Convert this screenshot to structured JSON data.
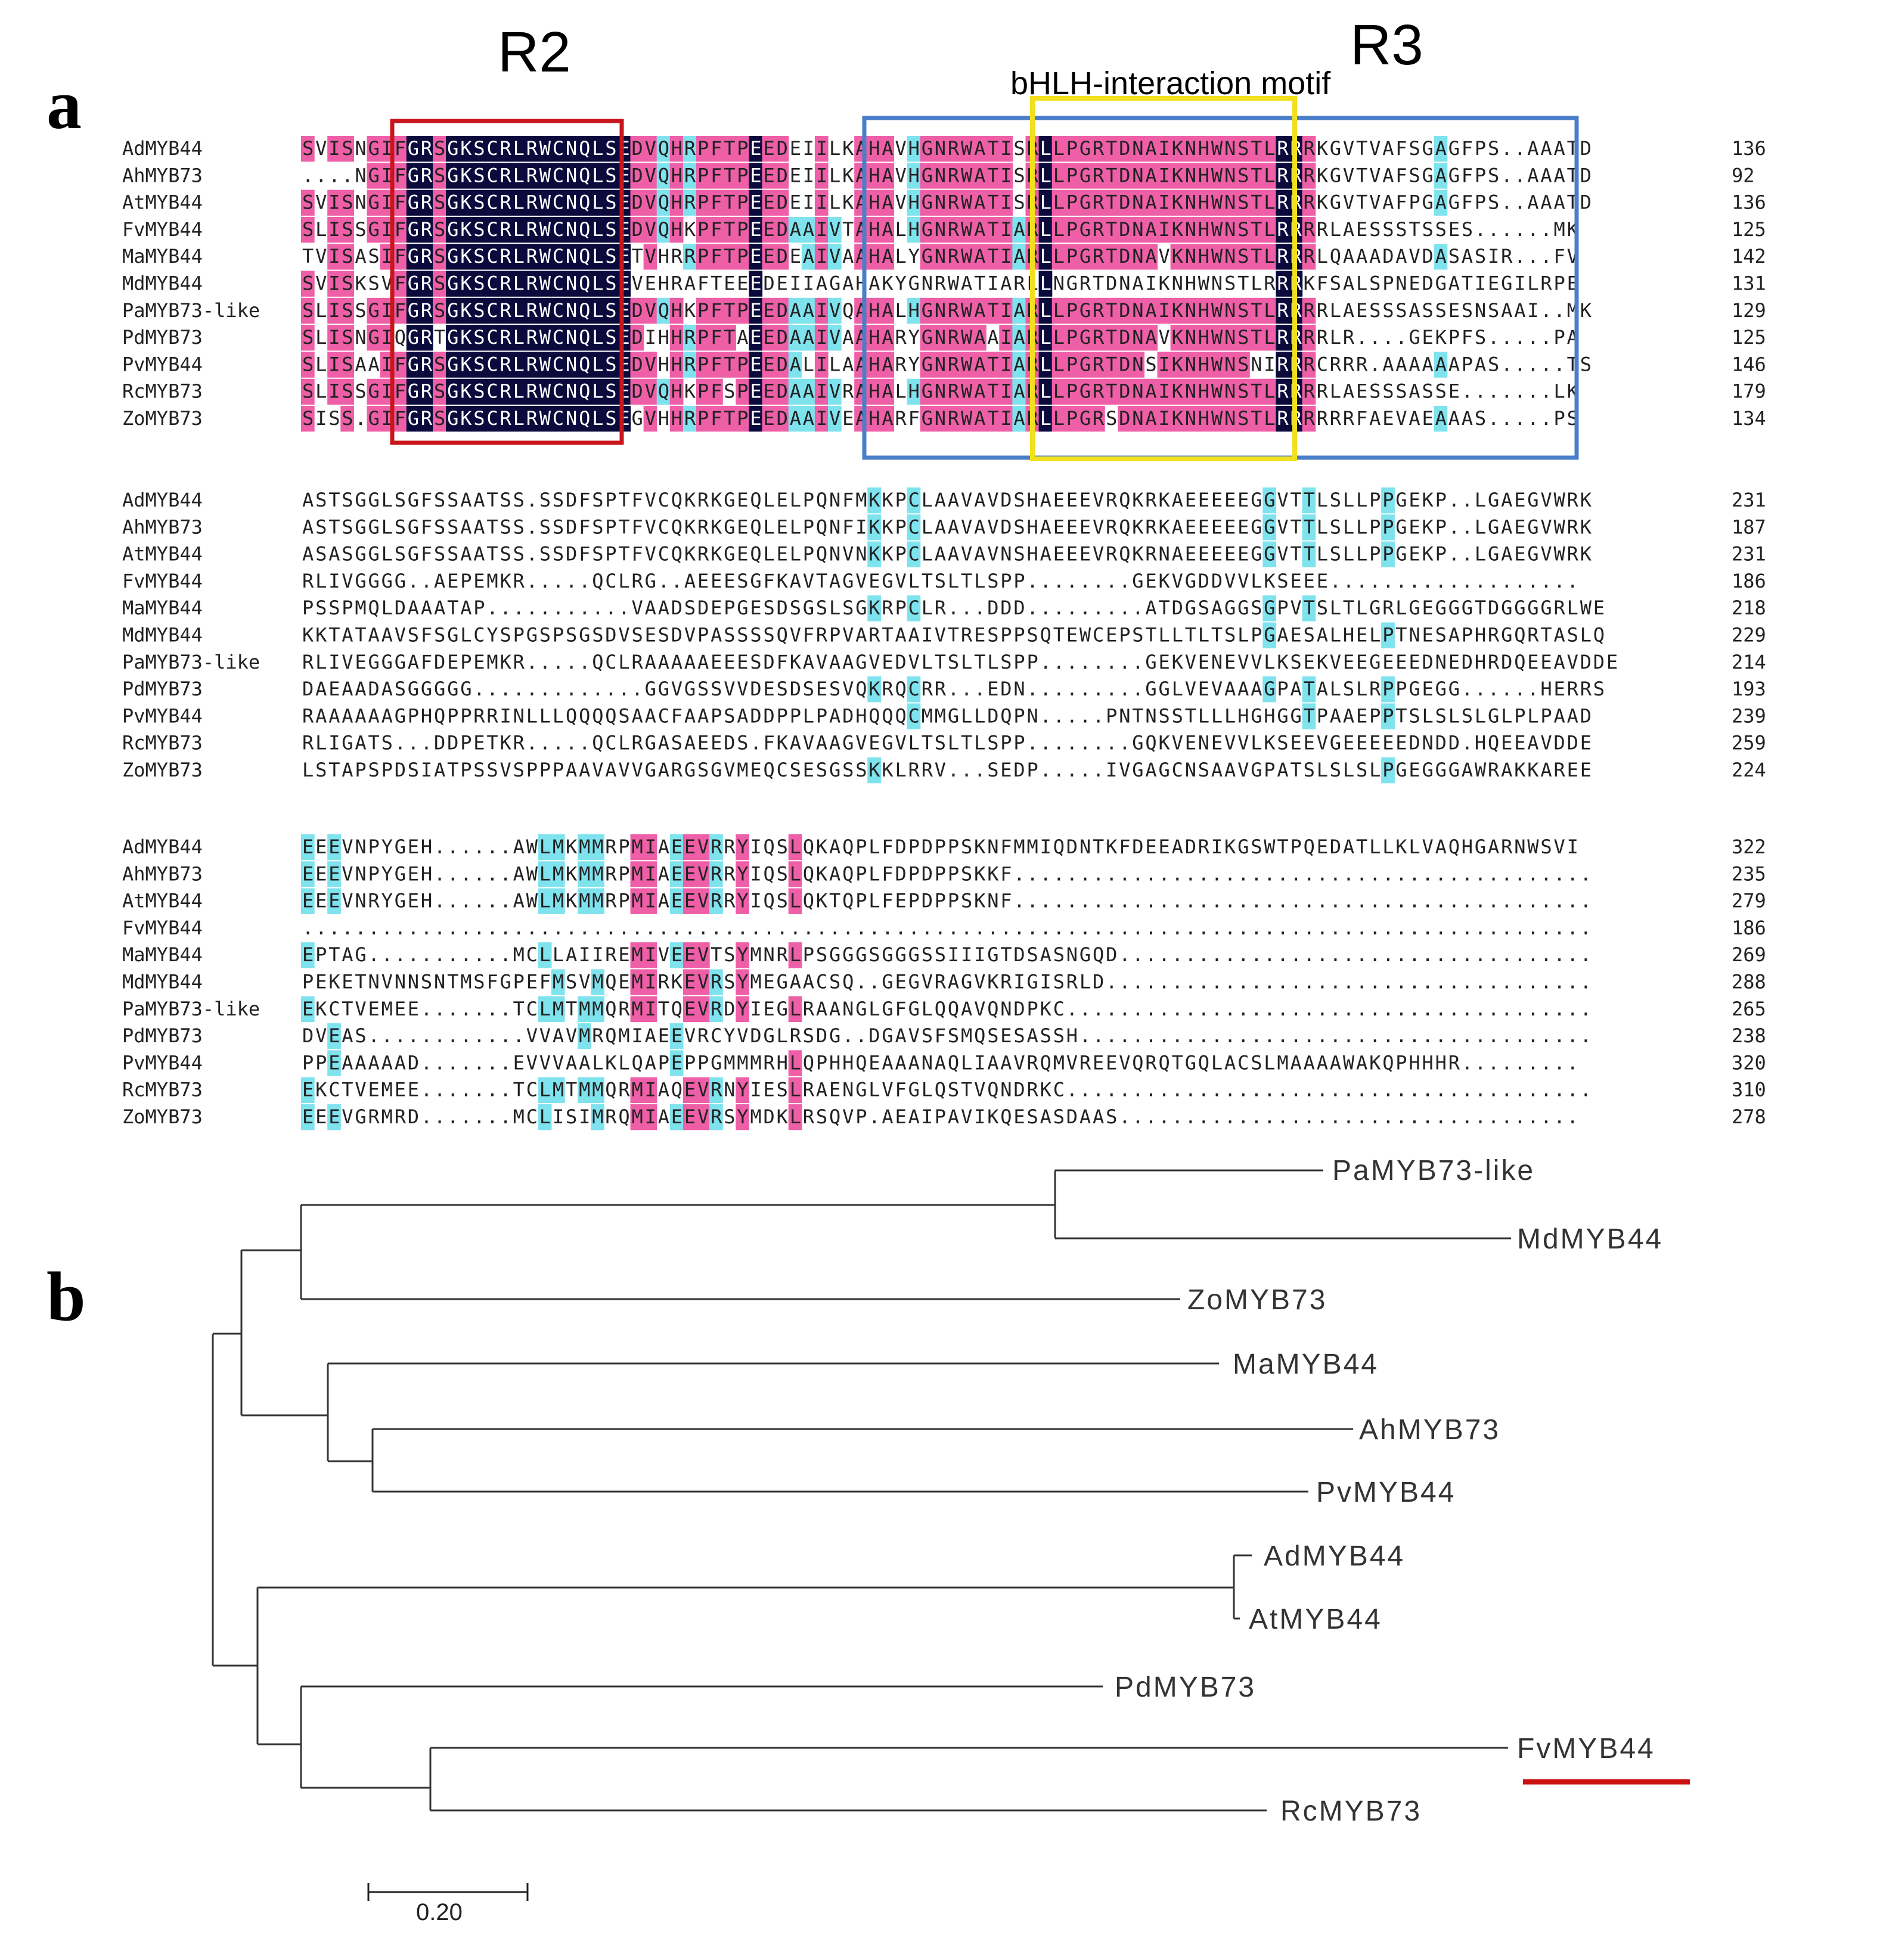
{
  "panel_a": {
    "label": "a",
    "regions": {
      "r2": "R2",
      "r3": "R3",
      "motif": "bHLH-interaction motif"
    },
    "colors": {
      "identical": "#0a0a3c",
      "high": "#ee5fa7",
      "low": "#7fe3ee",
      "r2_box": "#c8161d",
      "r3_box": "#4a7ec8",
      "motif_box": "#f2e01e"
    },
    "blocks": [
      {
        "rows": [
          {
            "name": "AdMYB44",
            "seq": "SVISNGIFGRSGKSCRLRWCNQLSEDVQHRPFTPEEDEIILKAHAVHGNRWATISRLLPGRTDNAIKNHWNSTLRRRKGVTVAFSGAGFPS..AAATD",
            "num": "136"
          },
          {
            "name": "AhMYB73",
            "seq": "....NGIFGRSGKSCRLRWCNQLSEDVQHRPFTPEEDEIILKAHAVHGNRWATISRLLPGRTDNAIKNHWNSTLRRRKGVTVAFSGAGFPS..AAATD",
            "num": "92"
          },
          {
            "name": "AtMYB44",
            "seq": "SVISNGIFGRSGKSCRLRWCNQLSEDVQHRPFTPEEDEIILKAHAVHGNRWATISRLLPGRTDNAIKNHWNSTLRRRKGVTVAFPGAGFPS..AAATD",
            "num": "136"
          },
          {
            "name": "FvMYB44",
            "seq": "SLISSGIFGRSGKSCRLRWCNQLSEDVQHKPFTPEEDAAIVTAHALHGNRWATIARLLPGRTDNAIKNHWNSTLRRRRLAESSSTSSES......MK",
            "num": "125"
          },
          {
            "name": "MaMYB44",
            "seq": "TVISASIFGRSGKSCRLRWCNQLSETVHRRPFTPEEDEAIVAAHALYGNRWATIARLLPGRTDNAVKNHWNSTLRRRLQAAADAVDASASIR...FV",
            "num": "142"
          },
          {
            "name": "MdMYB44",
            "seq": "SVISKSVFGRSGKSCRLRWCNQLSEVEHRAFTEEEDEIIAGAHAKYGNRWATIARLLNGRTDNAIKNHWNSTLRRRKFSALSPNEDGATIEGILRPE",
            "num": "131"
          },
          {
            "name": "PaMYB73-like",
            "seq": "SLISSGIFGRSGKSCRLRWCNQLSEDVQHKPFTPEEDAAIVQAHALHGNRWATIARLLPGRTDNAIKNHWNSTLRRRRLAESSSASSESNSAAI..MK",
            "num": "129"
          },
          {
            "name": "PdMYB73",
            "seq": "SLISNGIQGRTGKSCRLRWCNQLSEDIHHRPFTAEEDAAIVAAHARYGNRWAAIARLLPGRTDNAVKNHWNSTLRRRRLR....GEKPFS.....PA",
            "num": "125"
          },
          {
            "name": "PvMYB44",
            "seq": "SLISAAIFGRSGKSCRLRWCNQLSEDVHHRPFTPEEDALILAAHARYGNRWATIARLLPGRTDNSIKNHWNSNIRRRCRRR.AAAAAAPAS.....TS",
            "num": "146"
          },
          {
            "name": "RcMYB73",
            "seq": "SLISSGIFGRSGKSCRLRWCNQLSEDVQHKPFSPEEDAAIVRAHALHGNRWATIARLLPGRTDNAIKNHWNSTLRRRRLAESSSASSE.......LK",
            "num": "179"
          },
          {
            "name": "ZoMYB73",
            "seq": "SISS.GIFGRSGKSCRLRWCNQLSEGVHHRPFTPEEDAAIVEAHARFGNRWATIARLLPGRSDNAIKNHWNSTLRRRRRRFAEVAEAAAS.....PS",
            "num": "134"
          }
        ]
      },
      {
        "rows": [
          {
            "name": "AdMYB44",
            "seq": "ASTSGGLSGFSSAATSS.SSDFSPTFVCQKRKGEQLELPQNFMKKPCLAAVAVDSHAEEEVRQKRKAEEEEEGGVTTLSLLPPGEKP..LGAEGVWRK",
            "num": "231"
          },
          {
            "name": "AhMYB73",
            "seq": "ASTSGGLSGFSSAATSS.SSDFSPTFVCQKRKGEQLELPQNFIKKPCLAAVAVDSHAEEEVRQKRKAEEEEEGGVTTLSLLPPGEKP..LGAEGVWRK",
            "num": "187"
          },
          {
            "name": "AtMYB44",
            "seq": "ASASGGLSGFSSAATSS.SSDFSPTFVCQKRKGEQLELPQNVNKKPCLAAVAVNSHAEEEVRQKRNAEEEEEGGVTTLSLLPPGEKP..LGAEGVWRK",
            "num": "231"
          },
          {
            "name": "FvMYB44",
            "seq": "RLIVGGGG..AEPEMKR.....QCLRG..AEEESGFKAVTAGVEGVLTSLTLSPP........GEKVGDDVVLKSEEE...................",
            "num": "186"
          },
          {
            "name": "MaMYB44",
            "seq": "PSSPMQLDAAATAP...........VAADSDEPGESDSGSLSGKRPCLR...DDD.........ATDGSAGGSGPVTSLTLGRLGEGGGTDGGGGRLWE",
            "num": "218"
          },
          {
            "name": "MdMYB44",
            "seq": "KKTATAAVSFSGLCYSPGSPSGSDVSESDVPASSSSQVFRPVARTAAIVTRESPPSQTEWCEPSTLLTLTSLPGAESALHELPTNESAPHRGQRTASLQ",
            "num": "229"
          },
          {
            "name": "PaMYB73-like",
            "seq": "RLIVEGGGAFDEPEMKR.....QCLRAAAAAEEESDFKAVAAGVEDVLTSLTLSPP........GEKVENEVVLKSEKVEEGEEEDNEDHRDQEEAVDDE",
            "num": "214"
          },
          {
            "name": "PdMYB73",
            "seq": "DAEAADASGGGGG.............GGVGSSVVDESDSESVQKRQCRR...EDN.........GGLVEVAAAGPATALSLRPPGEGG......HERRS",
            "num": "193"
          },
          {
            "name": "PvMYB44",
            "seq": "RAAAAAAGPHQPPRRINLLLQQQQSAACFAAPSADDPPLPADHQQQCMMGLLDQPN.....PNTNSSTLLLHGHGGTPAAEPPTSLSLSLGLPLPAAD",
            "num": "239"
          },
          {
            "name": "RcMYB73",
            "seq": "RLIGATS...DDPETKR.....QCLRGASAEEDS.FKAVAAGVEGVLTSLTLSPP........GQKVENEVVLKSEEVGEEEEEDNDD.HQEEAVDDE",
            "num": "259"
          },
          {
            "name": "ZoMYB73",
            "seq": "LSTAPSPDSIATPSSVSPPPAAVAVVGARGSGVMEQCSESGSSKKLRRV...SEDP.....IVGAGCNSAAVGPATSLSLSLPGEGGGAWRAKKAREE",
            "num": "224"
          }
        ]
      },
      {
        "rows": [
          {
            "name": "AdMYB44",
            "seq": "EEEVNPYGEH......AWLMKMMRPMIAEEVRRYIQSLQKAQPLFDPDPPSKNFMMIQDNTKFDEEADRIKGSWTPQEDATLLKLVAQHGARNWSVI",
            "num": "322"
          },
          {
            "name": "AhMYB73",
            "seq": "EEEVNPYGEH......AWLMKMMRPMIAEEVRRYIQSLQKAQPLFDPDPPSKKF............................................",
            "num": "235"
          },
          {
            "name": "AtMYB44",
            "seq": "EEEVNRYGEH......AWLMKMMRPMIAEEVRRYIQSLQKTQPLFEPDPPSKNF............................................",
            "num": "279"
          },
          {
            "name": "FvMYB44",
            "seq": "..................................................................................................",
            "num": "186"
          },
          {
            "name": "MaMYB44",
            "seq": "EPTAG...........MCLLAIIREMIVEEVTSYMNRLPSGGGSGGGSSIIIGTDSASNGQD....................................",
            "num": "269"
          },
          {
            "name": "MdMYB44",
            "seq": "PEKETNVNNSNTMSFGPEFMSVMQEMIRKEVRSYMEGAACSQ..GEGVRAGVKRIGISRLD.....................................",
            "num": "288"
          },
          {
            "name": "PaMYB73-like",
            "seq": "EKCTVEMEE.......TCLMTMMQRMITQEVRDYIEGLRAANGLGFGLQQAVQNDPKC........................................",
            "num": "265"
          },
          {
            "name": "PdMYB73",
            "seq": "DVEAS............VVAVMRQMIAEEVRCYVDGLRSDG..DGAVSFSMQSESASSH.......................................",
            "num": "238"
          },
          {
            "name": "PvMYB44",
            "seq": "PPEAAAAAD.......EVVVAALKLQAPEPPGMMMRHLQPHHQEAAANAQLIAAVRQMVREEVQRQTGQLACSLMAAAAWAKQPHHHR.........",
            "num": "320"
          },
          {
            "name": "RcMYB73",
            "seq": "EKCTVEMEE.......TCLMTMMQRMIAQEVRNYIESLRAENGLVFGLQSTVQNDRKC........................................",
            "num": "310"
          },
          {
            "name": "ZoMYB73",
            "seq": "EEEVGRMRD.......MCLISIMRQMIAEEVRSYMDKLRSQVP.AEAIPAVIKQESASDAAS...................................",
            "num": "278"
          }
        ]
      }
    ]
  },
  "panel_b": {
    "label": "b",
    "leaves": [
      "PaMYB73-like",
      "MdMYB44",
      "ZoMYB73",
      "MaMYB44",
      "AhMYB73",
      "PvMYB44",
      "AdMYB44",
      "AtMYB44",
      "PdMYB73",
      "FvMYB44",
      "RcMYB73"
    ],
    "highlight_leaf": "FvMYB44",
    "highlight_color": "#cc1111",
    "scale_bar": {
      "value": 0.2,
      "label": "0.20"
    }
  }
}
